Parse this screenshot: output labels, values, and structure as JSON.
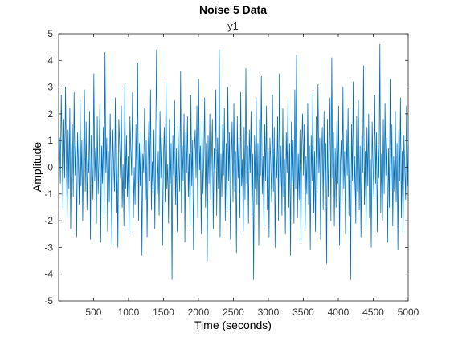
{
  "chart_data": {
    "type": "line",
    "title": "Noise 5 Data",
    "subtitle": "y1",
    "xlabel": "Time (seconds)",
    "ylabel": "Amplitude",
    "xlim": [
      1,
      5000
    ],
    "ylim": [
      -5,
      5
    ],
    "xticks": [
      500,
      1000,
      1500,
      2000,
      2500,
      3000,
      3500,
      4000,
      4500,
      5000
    ],
    "yticks": [
      -5,
      -4,
      -3,
      -2,
      -1,
      0,
      1,
      2,
      3,
      4,
      5
    ],
    "grid": false,
    "series_color": "#0072BD",
    "series": [
      {
        "values": [
          0.3,
          1.1,
          -0.6,
          2.7,
          0.8,
          -1.5,
          1.8,
          -0.4,
          3.0,
          0.2,
          -1.9,
          1.4,
          -0.8,
          2.2,
          -2.3,
          0.6,
          1.6,
          -1.1,
          2.8,
          -0.3,
          0.9,
          -2.6,
          1.3,
          0.1,
          -1.4,
          2.5,
          -0.7,
          1.0,
          -2.0,
          0.5,
          2.9,
          -0.9,
          1.7,
          -1.6,
          0.4,
          -0.2,
          2.1,
          -2.7,
          1.2,
          0.0,
          -1.2,
          3.5,
          -0.5,
          0.7,
          -2.1,
          1.9,
          -1.0,
          0.3,
          2.4,
          -2.8,
          0.8,
          -0.6,
          1.5,
          -1.8,
          4.3,
          -0.2,
          1.1,
          -2.4,
          0.6,
          -1.3,
          2.0,
          -0.1,
          -2.9,
          1.4,
          0.2,
          -0.9,
          2.6,
          -1.7,
          0.5,
          -3.0,
          1.8,
          0.9,
          -0.4,
          2.3,
          -1.5,
          0.1,
          -2.2,
          3.1,
          -0.8,
          1.2,
          -1.1,
          0.4,
          -2.5,
          1.9,
          0.7,
          -0.3,
          2.8,
          -1.9,
          0.0,
          -1.4,
          1.6,
          -0.6,
          3.9,
          -2.0,
          0.9,
          -0.7,
          1.3,
          -3.3,
          0.5,
          -0.2,
          2.2,
          -1.2,
          1.0,
          -2.6,
          0.3,
          1.7,
          -0.5,
          2.9,
          -1.6,
          0.2,
          -0.9,
          1.4,
          -2.3,
          0.8,
          4.4,
          -1.0,
          0.6,
          -1.8,
          2.1,
          -0.4,
          1.1,
          -2.9,
          0.4,
          1.5,
          -1.3,
          3.2,
          -0.8,
          0.1,
          -2.1,
          1.8,
          -0.6,
          0.9,
          -4.2,
          1.2,
          -0.3,
          2.5,
          -1.4,
          0.7,
          -2.4,
          1.6,
          0.0,
          -0.9,
          3.6,
          -1.7,
          0.8,
          -0.5,
          2.0,
          -2.8,
          1.3,
          -0.2,
          1.9,
          -1.1,
          0.5,
          -2.2,
          2.7,
          -0.7,
          1.0,
          -3.1,
          0.6,
          1.4,
          -0.4,
          2.3,
          -1.9,
          3.3,
          -0.1,
          0.8,
          -2.5,
          1.7,
          -1.0,
          0.3,
          2.6,
          -1.5,
          0.9,
          -3.5,
          1.2,
          -0.6,
          2.0,
          -1.2,
          0.4,
          1.8,
          -2.3,
          0.7,
          -0.2,
          2.9,
          -1.8,
          1.1,
          -0.8,
          4.4,
          -2.6,
          0.5,
          -1.1,
          1.6,
          -0.3,
          2.2,
          -2.0,
          0.9,
          -1.6,
          3.0,
          -0.5,
          1.3,
          -2.7,
          0.2,
          1.7,
          -1.3,
          2.4,
          -0.9,
          0.6,
          -3.2,
          1.9,
          -0.4,
          1.0,
          -1.9,
          2.8,
          -0.7,
          0.3,
          -2.4,
          1.5,
          -1.2,
          3.7,
          -0.6,
          0.8,
          -2.1,
          1.4,
          -0.2,
          2.1,
          -1.7,
          0.5,
          -4.2,
          1.2,
          -0.8,
          2.6,
          -1.4,
          0.9,
          -2.9,
          1.8,
          -0.3,
          3.4,
          -1.0,
          0.4,
          -2.2,
          1.6,
          -0.5,
          2.3,
          -1.6,
          0.7,
          -2.6,
          1.1,
          0.2,
          -1.3,
          2.7,
          -0.9,
          1.5,
          -3.0,
          0.6,
          -0.4,
          1.9,
          -2.0,
          3.5,
          -0.7,
          0.8,
          -1.8,
          2.2,
          -1.1,
          0.3,
          -2.5,
          1.3,
          -0.2,
          2.5,
          -1.5,
          0.9,
          -3.3,
          1.7,
          -0.6,
          1.0,
          -2.1,
          2.9,
          -0.8,
          4.2,
          -1.9,
          0.5,
          -1.2,
          1.4,
          -2.8,
          0.7,
          2.0,
          -0.3,
          1.6,
          -2.3,
          0.4,
          -1.0,
          2.4,
          -1.4,
          0.8,
          -3.1,
          1.2,
          -0.5,
          2.8,
          -1.7,
          0.6,
          -2.4,
          1.9,
          -0.9,
          3.1,
          -0.2,
          1.1,
          -2.7,
          0.3,
          1.5,
          -1.6,
          2.1,
          -0.7,
          0.9,
          -3.6,
          1.8,
          -1.1,
          0.5,
          2.6,
          -2.0,
          4.1,
          -0.4,
          1.3,
          -2.2,
          0.7,
          -1.5,
          1.7,
          -0.6,
          2.3,
          -2.9,
          0.2,
          1.0,
          -1.3,
          3.0,
          -0.8,
          0.6,
          -2.5,
          1.4,
          -0.3,
          2.2,
          -1.8,
          0.9,
          -4.2,
          1.6,
          -0.5,
          3.2,
          -1.2,
          0.4,
          -2.1,
          1.9,
          -0.9,
          2.5,
          -1.6,
          0.8,
          -2.6,
          1.2,
          -0.2,
          3.8,
          -1.4,
          0.6,
          -2.3,
          1.5,
          -0.7,
          2.0,
          -1.9,
          0.3,
          -3.0,
          1.7,
          0.1,
          -1.1,
          2.7,
          -0.6,
          1.3,
          -2.4,
          0.8,
          -0.4,
          4.6,
          -1.7,
          0.5,
          -2.0,
          1.8,
          -1.0,
          2.4,
          -0.3,
          1.1,
          -2.8,
          0.7,
          -1.5,
          3.3,
          -0.8,
          1.6,
          -2.2,
          0.4,
          -0.9,
          2.1,
          -1.3,
          0.9,
          -3.1,
          1.4,
          -0.5,
          2.6,
          -1.9,
          0.6,
          -2.5,
          1.2,
          0.0,
          -1.2,
          2.3,
          -0.7,
          0.8
        ]
      }
    ]
  }
}
